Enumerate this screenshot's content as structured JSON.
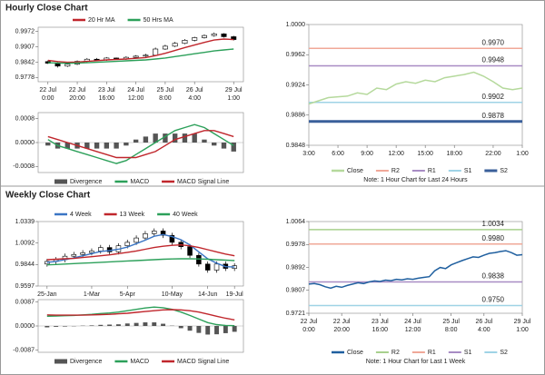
{
  "headers": [
    "Hourly Close Chart",
    "Weekly Close Chart"
  ],
  "chart_data": [
    {
      "type": "candlestick",
      "xlim": [
        -1,
        20
      ],
      "xticks": [
        {
          "value": 0,
          "label": "22 Jul\n0:00"
        },
        {
          "value": 3,
          "label": "22 Jul\n20:00"
        },
        {
          "value": 6,
          "label": "23 Jul\n16:00"
        },
        {
          "value": 9,
          "label": "24 Jul\n12:00"
        },
        {
          "value": 12,
          "label": "25 Jul\n8:00"
        },
        {
          "value": 15,
          "label": "26 Jul\n4:00"
        },
        {
          "value": 19,
          "label": "29 Jul\n1:00"
        }
      ],
      "ylim": [
        0.976,
        0.999
      ],
      "yticks": [
        0.9972,
        0.9907,
        0.9842,
        0.9778
      ],
      "candles": {
        "open": [
          0.9845,
          0.9838,
          0.9826,
          0.9834,
          0.9846,
          0.9855,
          0.9852,
          0.986,
          0.9856,
          0.9863,
          0.9868,
          0.9872,
          0.9898,
          0.991,
          0.9922,
          0.9935,
          0.9946,
          0.9955,
          0.9962,
          0.995
        ],
        "high": [
          0.985,
          0.9842,
          0.9838,
          0.985,
          0.986,
          0.986,
          0.9864,
          0.9862,
          0.9868,
          0.9872,
          0.9878,
          0.9904,
          0.9916,
          0.9928,
          0.994,
          0.995,
          0.996,
          0.9968,
          0.9965,
          0.9954
        ],
        "low": [
          0.9835,
          0.982,
          0.9822,
          0.983,
          0.9842,
          0.9848,
          0.9848,
          0.9852,
          0.9852,
          0.986,
          0.9864,
          0.9868,
          0.9894,
          0.9906,
          0.9918,
          0.993,
          0.9942,
          0.995,
          0.9946,
          0.9934
        ],
        "close": [
          0.9838,
          0.9826,
          0.9834,
          0.9846,
          0.9855,
          0.9852,
          0.986,
          0.9856,
          0.9863,
          0.9868,
          0.9872,
          0.9898,
          0.991,
          0.9922,
          0.9935,
          0.9946,
          0.9955,
          0.9962,
          0.995,
          0.9938
        ]
      },
      "series": [
        {
          "name": "20 Hr MA",
          "color": "#c0262c",
          "values": [
            0.985,
            0.9845,
            0.9842,
            0.9843,
            0.9846,
            0.9849,
            0.9852,
            0.9854,
            0.9856,
            0.9859,
            0.9862,
            0.987,
            0.988,
            0.9892,
            0.9904,
            0.9915,
            0.9926,
            0.9936,
            0.994,
            0.9938
          ]
        },
        {
          "name": "50 Hrs MA",
          "color": "#2ca05a",
          "values": [
            0.984,
            0.9839,
            0.9838,
            0.9839,
            0.984,
            0.9842,
            0.9844,
            0.9846,
            0.9848,
            0.985,
            0.9852,
            0.9856,
            0.986,
            0.9866,
            0.9872,
            0.9878,
            0.9884,
            0.989,
            0.9894,
            0.9898
          ]
        }
      ]
    },
    {
      "type": "macd",
      "xlim": [
        -1,
        20
      ],
      "ylim": [
        -0.001,
        0.001
      ],
      "yticks": [
        0.0008,
        {
          "value": 0,
          "label": "0.0000"
        },
        -0.0008
      ],
      "series": [
        {
          "name": "Divergence",
          "color": "#555555",
          "style": "bar",
          "values": [
            -0.0001,
            -0.0002,
            -0.0002,
            -0.0002,
            -0.0002,
            -0.0002,
            -0.0002,
            -0.0002,
            -0.0001,
            0.0001,
            0.0002,
            0.0003,
            0.0003,
            0.0003,
            0.0003,
            0.0003,
            0.0001,
            -0.0001,
            -0.0002,
            -0.0003
          ]
        },
        {
          "name": "MACD",
          "color": "#2ca05a",
          "values": [
            0.0001,
            -0.0001,
            -0.0002,
            -0.0003,
            -0.0004,
            -0.0005,
            -0.0006,
            -0.0007,
            -0.0006,
            -0.0004,
            -0.0002,
            0,
            0.0002,
            0.0004,
            0.0005,
            0.0006,
            0.0005,
            0.0003,
            0.0001,
            -0.0001
          ]
        },
        {
          "name": "MACD Signal Line",
          "color": "#c0262c",
          "values": [
            0.0002,
            0.0001,
            0,
            -0.0001,
            -0.0002,
            -0.0003,
            -0.0004,
            -0.0005,
            -0.0005,
            -0.0005,
            -0.0004,
            -0.0003,
            -0.0001,
            0.0001,
            0.0002,
            0.0003,
            0.0004,
            0.0004,
            0.0003,
            0.0002
          ]
        }
      ]
    },
    {
      "type": "line",
      "note": "Note: 1 Hour Chart for Last 24 Hours",
      "xlim": [
        0,
        22
      ],
      "xticks": [
        {
          "value": 0,
          "label": "3:00"
        },
        {
          "value": 3,
          "label": "6:00"
        },
        {
          "value": 6,
          "label": "9:00"
        },
        {
          "value": 9,
          "label": "12:00"
        },
        {
          "value": 12,
          "label": "15:00"
        },
        {
          "value": 15,
          "label": "18:00"
        },
        {
          "value": 19,
          "label": "22:00"
        },
        {
          "value": 22,
          "label": "1:00"
        }
      ],
      "ylim": [
        0.9848,
        1
      ],
      "yticks": [
        {
          "value": 1,
          "label": "1.0000"
        },
        0.9962,
        0.9924,
        0.9886,
        0.9848
      ],
      "series": [
        {
          "name": "Close",
          "color": "#b5d99c",
          "values": [
            0.99,
            0.9904,
            0.9908,
            0.9909,
            0.991,
            0.9914,
            0.9912,
            0.992,
            0.9918,
            0.9925,
            0.9928,
            0.9926,
            0.993,
            0.9928,
            0.9933,
            0.9935,
            0.9937,
            0.994,
            0.9935,
            0.9928,
            0.992,
            0.9918,
            0.992
          ]
        }
      ],
      "levels": [
        {
          "name": "R2",
          "value": 0.997,
          "label": "0.9970",
          "color": "#f0a898"
        },
        {
          "name": "R1",
          "value": 0.9948,
          "label": "0.9948",
          "color": "#a88cc4"
        },
        {
          "name": "S1",
          "value": 0.9902,
          "label": "0.9902",
          "color": "#9fd3e6"
        },
        {
          "name": "S2",
          "value": 0.9878,
          "label": "0.9878",
          "color": "#3a5f9a",
          "line_width": 3
        }
      ]
    },
    {
      "type": "candlestick",
      "xlim": [
        -1,
        22
      ],
      "xticks": [
        {
          "value": 0,
          "label": "25-Jan"
        },
        {
          "value": 5,
          "label": "1-Mar"
        },
        {
          "value": 9,
          "label": "5-Apr"
        },
        {
          "value": 14,
          "label": "10-May"
        },
        {
          "value": 18,
          "label": "14-Jun"
        },
        {
          "value": 21,
          "label": "19-Jul"
        }
      ],
      "ylim": [
        0.9597,
        1.0339
      ],
      "yticks": [
        1.0339,
        1.0092,
        0.9844,
        0.9597
      ],
      "candles": {
        "open": [
          0.985,
          0.988,
          0.99,
          0.994,
          0.996,
          0.998,
          1.0,
          1.004,
          0.999,
          1.006,
          1.01,
          1.015,
          1.02,
          1.023,
          1.018,
          1.01,
          1.005,
          0.995,
          0.985,
          0.978,
          0.985,
          0.98
        ],
        "high": [
          0.991,
          0.993,
          0.997,
          0.999,
          1.001,
          1.003,
          1.007,
          1.007,
          1.009,
          1.013,
          1.018,
          1.023,
          1.026,
          1.026,
          1.021,
          1.013,
          1.008,
          0.998,
          0.988,
          0.988,
          0.988,
          0.986
        ],
        "low": [
          0.982,
          0.985,
          0.987,
          0.991,
          0.993,
          0.995,
          0.997,
          0.996,
          0.996,
          1.003,
          1.007,
          1.012,
          1.017,
          1.015,
          1.007,
          1.002,
          0.992,
          0.982,
          0.975,
          0.975,
          0.977,
          0.977
        ],
        "close": [
          0.988,
          0.99,
          0.994,
          0.996,
          0.998,
          1.0,
          1.004,
          0.999,
          1.006,
          1.01,
          1.015,
          1.02,
          1.023,
          1.018,
          1.01,
          1.005,
          0.995,
          0.985,
          0.978,
          0.985,
          0.98,
          0.983
        ]
      },
      "series": [
        {
          "name": "4 Week",
          "color": "#3a75c4",
          "values": [
            0.987,
            0.988,
            0.99,
            0.992,
            0.9945,
            0.997,
            0.9995,
            1.0005,
            1.002,
            1.0045,
            1.0085,
            1.0125,
            1.017,
            1.019,
            1.0165,
            1.013,
            1.007,
            0.999,
            0.991,
            0.986,
            0.982,
            0.9815
          ]
        },
        {
          "name": "13 Week",
          "color": "#c0262c",
          "values": [
            0.99,
            0.9905,
            0.991,
            0.9915,
            0.9925,
            0.9935,
            0.9945,
            0.9955,
            0.997,
            0.9985,
            1.0,
            1.002,
            1.004,
            1.0055,
            1.0065,
            1.007,
            1.006,
            1.004,
            1.0015,
            0.999,
            0.9965,
            0.9945
          ]
        },
        {
          "name": "40 Week",
          "color": "#2ca05a",
          "values": [
            0.984,
            0.9845,
            0.985,
            0.9855,
            0.986,
            0.9865,
            0.987,
            0.9875,
            0.988,
            0.9885,
            0.989,
            0.9895,
            0.99,
            0.9905,
            0.9908,
            0.991,
            0.991,
            0.9908,
            0.9905,
            0.99,
            0.9895,
            0.989
          ]
        }
      ]
    },
    {
      "type": "macd",
      "xlim": [
        -1,
        22
      ],
      "ylim": [
        -0.0095,
        0.0095
      ],
      "yticks": [
        0.0087,
        {
          "value": 0,
          "label": "0.0000"
        },
        -0.0087
      ],
      "series": [
        {
          "name": "Divergence",
          "color": "#555555",
          "style": "bar",
          "values": [
            -0.0005,
            -0.0003,
            -0.0002,
            -0.0001,
            0.0001,
            0.0002,
            0.0004,
            0.0005,
            0.0006,
            0.0009,
            0.0011,
            0.0013,
            0.0013,
            0.0008,
            0.0001,
            -0.0008,
            -0.0017,
            -0.0025,
            -0.0031,
            -0.003,
            -0.0026,
            -0.0021
          ]
        },
        {
          "name": "MACD",
          "color": "#2ca05a",
          "values": [
            0.0035,
            0.0036,
            0.0037,
            0.0038,
            0.004,
            0.0042,
            0.0045,
            0.0047,
            0.005,
            0.0055,
            0.006,
            0.0065,
            0.0068,
            0.0066,
            0.006,
            0.005,
            0.0038,
            0.0025,
            0.0012,
            0.0005,
            0.0002,
            0.0001
          ]
        },
        {
          "name": "MACD Signal Line",
          "color": "#c0262c",
          "values": [
            0.004,
            0.0039,
            0.0039,
            0.0039,
            0.0039,
            0.004,
            0.0041,
            0.0042,
            0.0044,
            0.0046,
            0.0049,
            0.0052,
            0.0055,
            0.0058,
            0.0059,
            0.0058,
            0.0055,
            0.005,
            0.0043,
            0.0035,
            0.0028,
            0.0022
          ]
        }
      ]
    },
    {
      "type": "line",
      "note": "Note: 1 Hour Chart for Last 1 Week",
      "xlim": [
        0,
        39
      ],
      "xticks": [
        {
          "value": 0,
          "label": "22 Jul\n0:00"
        },
        {
          "value": 6,
          "label": "22 Jul\n20:00"
        },
        {
          "value": 13,
          "label": "23 Jul\n16:00"
        },
        {
          "value": 19,
          "label": "24 Jul\n12:00"
        },
        {
          "value": 26,
          "label": "25 Jul\n8:00"
        },
        {
          "value": 32,
          "label": "26 Jul\n4:00"
        },
        {
          "value": 39,
          "label": "29 Jul\n1:00"
        }
      ],
      "ylim": [
        0.9721,
        1.0064
      ],
      "yticks": [
        1.0064,
        0.9978,
        0.9892,
        0.9807,
        0.9721
      ],
      "series": [
        {
          "name": "Close",
          "color": "#1f5f9f",
          "values": [
            0.983,
            0.9832,
            0.9828,
            0.982,
            0.9815,
            0.9822,
            0.9818,
            0.9825,
            0.983,
            0.9835,
            0.9832,
            0.9838,
            0.9842,
            0.984,
            0.9845,
            0.9843,
            0.9848,
            0.9846,
            0.985,
            0.9848,
            0.9852,
            0.9855,
            0.9858,
            0.988,
            0.9892,
            0.9888,
            0.9902,
            0.991,
            0.9918,
            0.9925,
            0.9932,
            0.993,
            0.9938,
            0.9945,
            0.9948,
            0.9952,
            0.9955,
            0.9948,
            0.9938,
            0.994
          ]
        }
      ],
      "levels": [
        {
          "name": "R2",
          "value": 1.0034,
          "label": "1.0034",
          "color": "#a8d08d"
        },
        {
          "name": "R1",
          "value": 0.998,
          "label": "0.9980",
          "color": "#f0a898"
        },
        {
          "name": "S1",
          "value": 0.9838,
          "label": "0.9838",
          "color": "#a88cc4"
        },
        {
          "name": "S2",
          "value": 0.975,
          "label": "0.9750",
          "color": "#9fd3e6"
        }
      ]
    }
  ]
}
